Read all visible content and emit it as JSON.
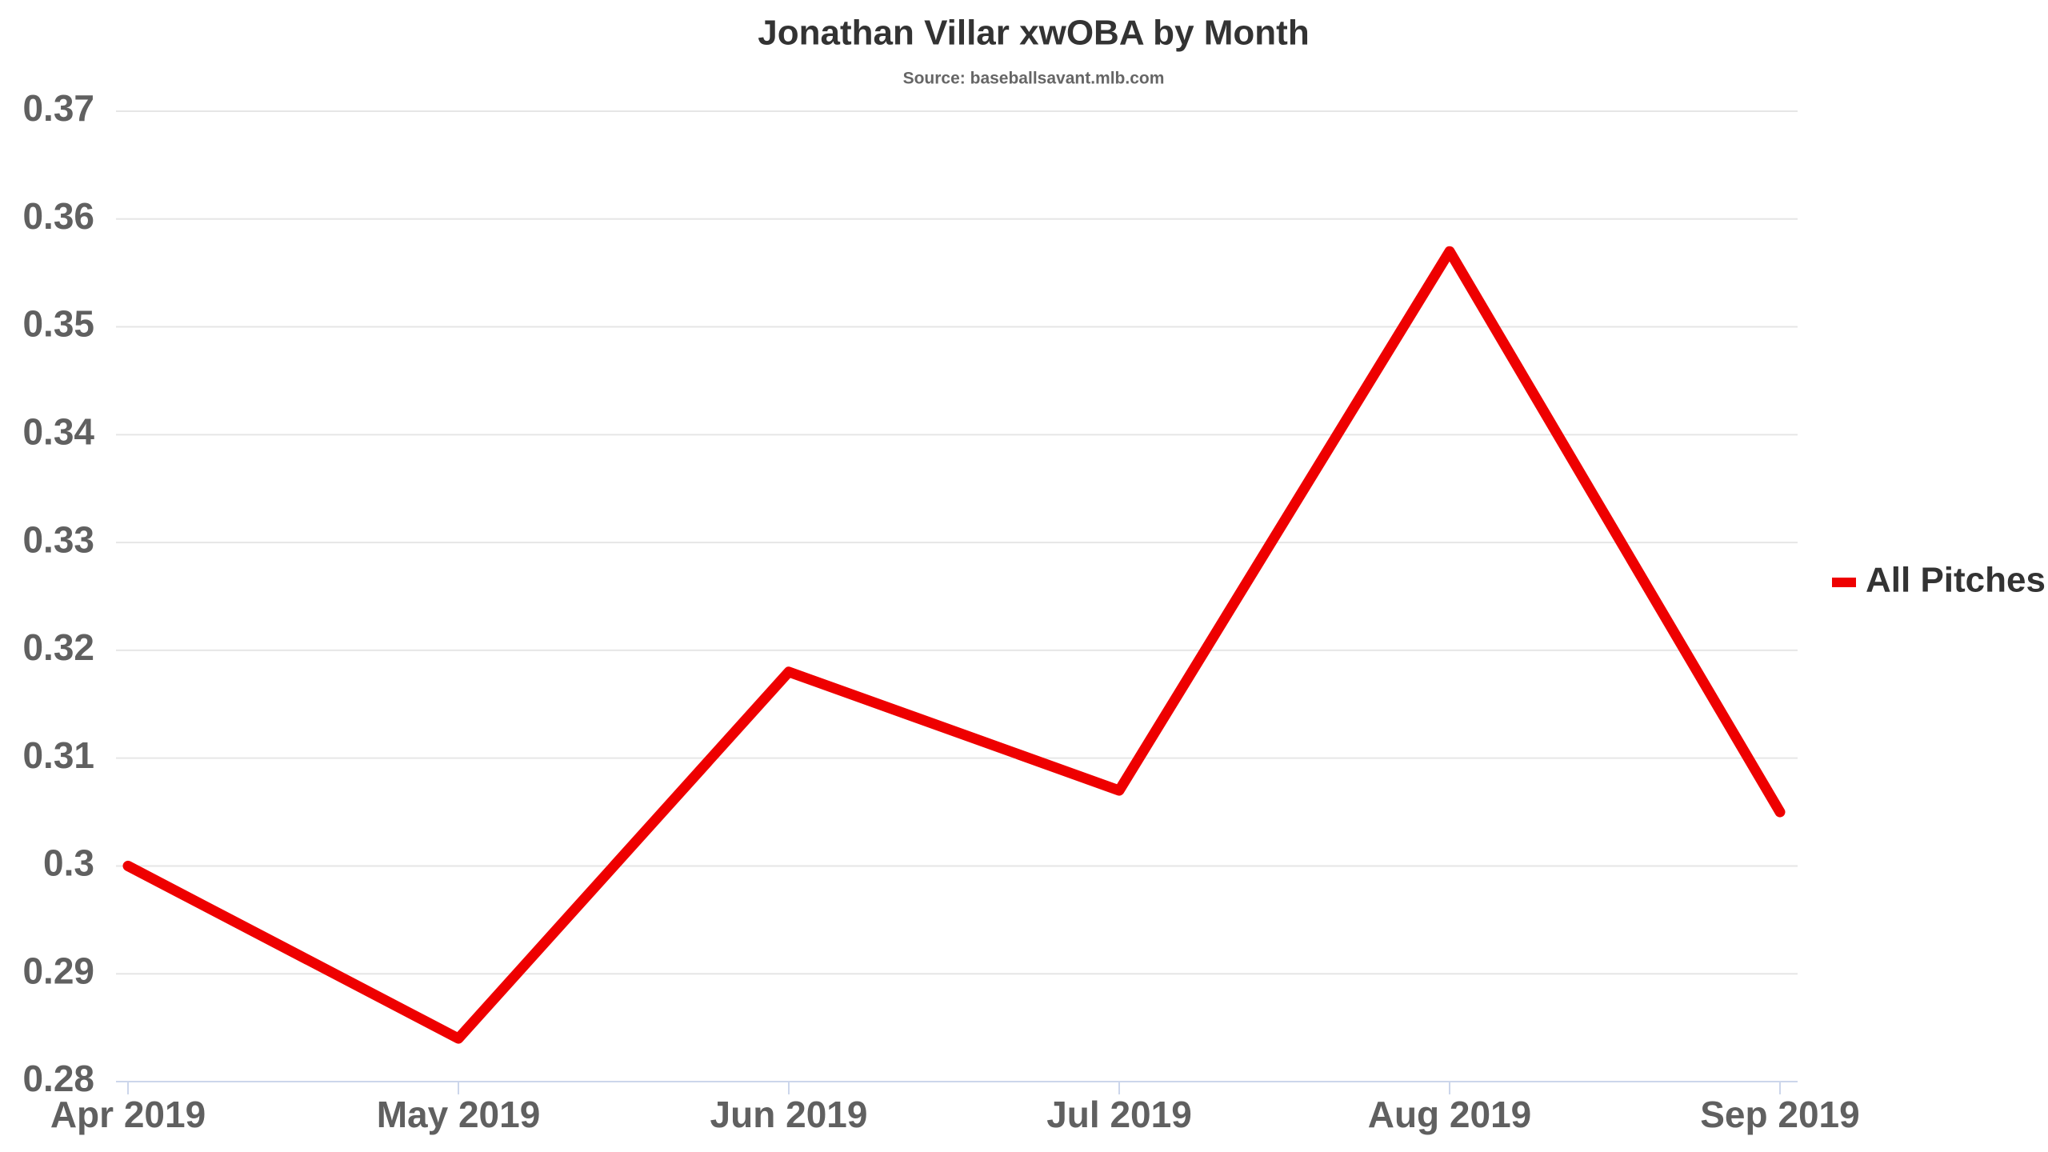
{
  "chart_data": {
    "type": "line",
    "title": "Jonathan Villar xwOBA by Month",
    "subtitle": "Source: baseballsavant.mlb.com",
    "categories": [
      "Apr 2019",
      "May 2019",
      "Jun 2019",
      "Jul 2019",
      "Aug 2019",
      "Sep 2019"
    ],
    "series": [
      {
        "name": "All Pitches",
        "color": "#ee0000",
        "values": [
          0.3,
          0.284,
          0.318,
          0.307,
          0.357,
          0.305
        ]
      }
    ],
    "ylim": [
      0.28,
      0.37
    ],
    "yticks": [
      0.28,
      0.29,
      0.3,
      0.31,
      0.32,
      0.33,
      0.34,
      0.35,
      0.36,
      0.37
    ],
    "grid": true,
    "legend": "right"
  }
}
